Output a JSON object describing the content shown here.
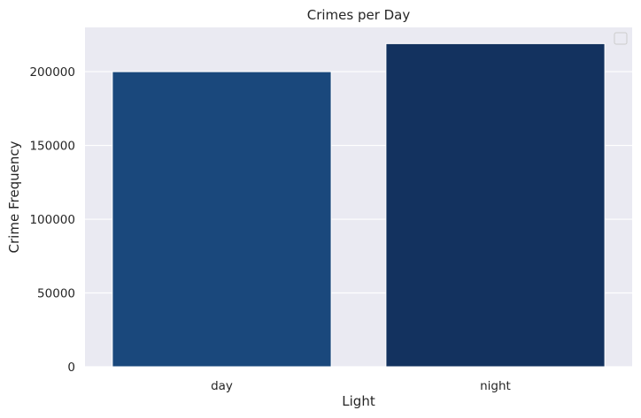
{
  "chart_data": {
    "type": "bar",
    "title": "Crimes per Day",
    "xlabel": "Light",
    "ylabel": "Crime Frequency",
    "categories": [
      "day",
      "night"
    ],
    "values": [
      200000,
      219000
    ],
    "bar_colors": [
      "#1a487c",
      "#13325f"
    ],
    "ylim": [
      0,
      230000
    ],
    "yticks": [
      0,
      50000,
      100000,
      150000,
      200000
    ],
    "ytick_labels": [
      "0",
      "50000",
      "100000",
      "150000",
      "200000"
    ],
    "grid": true,
    "legend": "top-right (empty)",
    "plot_background": "#eaeaf2",
    "grid_color": "#ffffff"
  }
}
